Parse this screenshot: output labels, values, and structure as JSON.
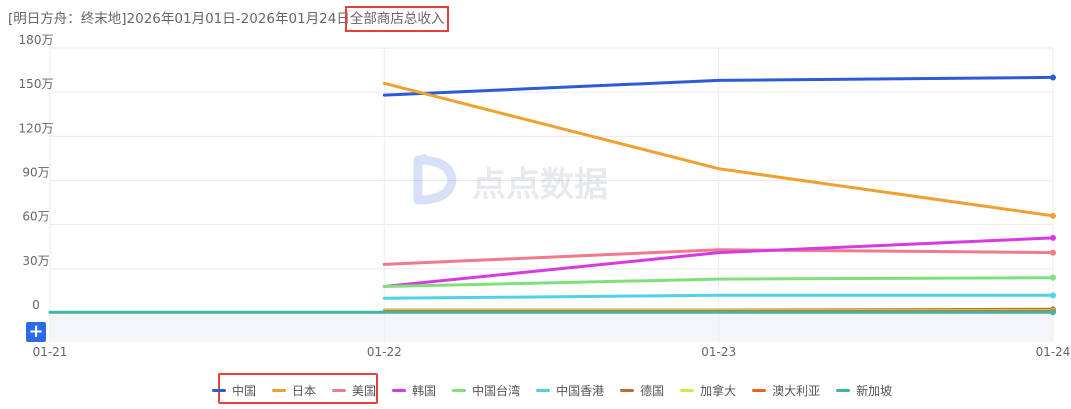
{
  "header": {
    "title_prefix": "[明日方舟：终末地]2026年01月01日-2026年01月24日",
    "title_highlight": "全部商店总收入"
  },
  "watermark": {
    "text": "点点数据"
  },
  "zoom": {
    "label": "+"
  },
  "chart_data": {
    "type": "line",
    "title": "[明日方舟：终末地]2026年01月01日-2026年01月24日全部商店总收入",
    "x": [
      "01-21",
      "01-22",
      "01-23",
      "01-24"
    ],
    "ylim": [
      0,
      1800000
    ],
    "yticks": [
      0,
      300000,
      600000,
      900000,
      1200000,
      1500000,
      1800000
    ],
    "ytick_labels": [
      "0",
      "30万",
      "60万",
      "90万",
      "120万",
      "150万",
      "180万"
    ],
    "grid": true,
    "legend_position": "bottom",
    "series": [
      {
        "name": "中国",
        "color": "#2c5bd6",
        "values": [
          null,
          1480000,
          1580000,
          1600000
        ]
      },
      {
        "name": "日本",
        "color": "#f0a030",
        "values": [
          null,
          1560000,
          980000,
          660000
        ]
      },
      {
        "name": "美国",
        "color": "#f07a8c",
        "values": [
          null,
          330000,
          430000,
          410000
        ]
      },
      {
        "name": "韩国",
        "color": "#d63ae0",
        "values": [
          null,
          180000,
          410000,
          510000
        ]
      },
      {
        "name": "中国台湾",
        "color": "#7fe07a",
        "values": [
          null,
          180000,
          230000,
          240000
        ]
      },
      {
        "name": "中国香港",
        "color": "#4fd0ec",
        "values": [
          null,
          100000,
          120000,
          120000
        ]
      },
      {
        "name": "德国",
        "color": "#b8702a",
        "values": [
          null,
          20000,
          20000,
          25000
        ]
      },
      {
        "name": "加拿大",
        "color": "#d4e84a",
        "values": [
          null,
          15000,
          15000,
          15000
        ]
      },
      {
        "name": "澳大利亚",
        "color": "#f06018",
        "values": [
          null,
          10000,
          10000,
          10000
        ]
      },
      {
        "name": "新加坡",
        "color": "#3ab8a0",
        "values": [
          5000,
          5000,
          5000,
          5000
        ]
      }
    ]
  }
}
